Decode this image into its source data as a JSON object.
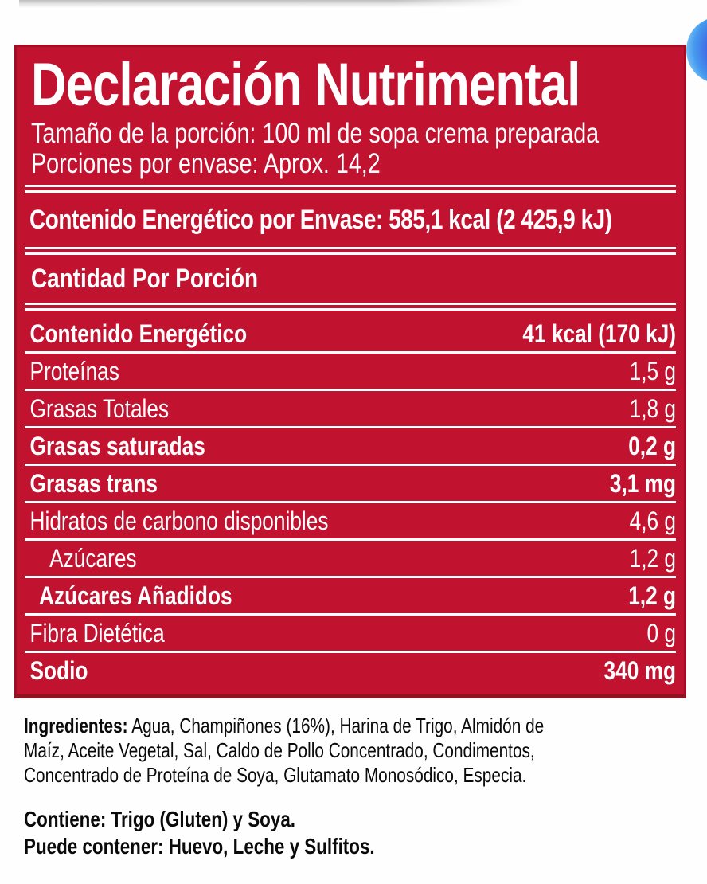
{
  "page": {
    "background": "#ffffff"
  },
  "colors": {
    "label_red": "#c11230",
    "label_border_red": "#9d1024",
    "rule_white": "#ffffff",
    "widget_blue_outer": "#8fd2f7",
    "widget_blue_inner": "#4338d2",
    "body_text": "#0a0a0a"
  },
  "label": {
    "title": "Declaración Nutrimental",
    "serving_size": "Tamaño de la porción: 100 ml de sopa crema preparada",
    "servings_per_package": "Porciones por envase: Aprox. 14,2",
    "energy_per_package": "Contenido Energético por Envase: 585,1 kcal (2 425,9 kJ)",
    "amount_per_serving_header": "Cantidad Por Porción",
    "rows": [
      {
        "name": "Contenido Energético",
        "value": "41 kcal (170 kJ)"
      },
      {
        "name": "Proteínas",
        "value": "1,5 g"
      },
      {
        "name": "Grasas Totales",
        "value": "1,8 g"
      },
      {
        "name": "Grasas saturadas",
        "value": "0,2 g"
      },
      {
        "name": "Grasas trans",
        "value": "3,1 mg"
      },
      {
        "name": "Hidratos de carbono disponibles",
        "value": "4,6 g"
      },
      {
        "name": "Azúcares",
        "value": "1,2 g"
      },
      {
        "name": "Azúcares Añadidos",
        "value": "1,2 g"
      },
      {
        "name": "Fibra Dietética",
        "value": "0 g"
      },
      {
        "name": "Sodio",
        "value": "340 mg"
      }
    ]
  },
  "ingredients": {
    "label": "Ingredientes:",
    "text": " Agua, Champiñones (16%), Harina de Trigo, Almidón de Maíz, Aceite Vegetal, Sal, Caldo de Pollo Concentrado, Condimentos, Concentrado de Proteína de Soya, Glutamato Monosódico, Especia."
  },
  "allergens": {
    "contains": "Contiene: Trigo (Gluten) y Soya.",
    "may_contain": "Puede contener: Huevo, Leche y Sulfitos."
  }
}
